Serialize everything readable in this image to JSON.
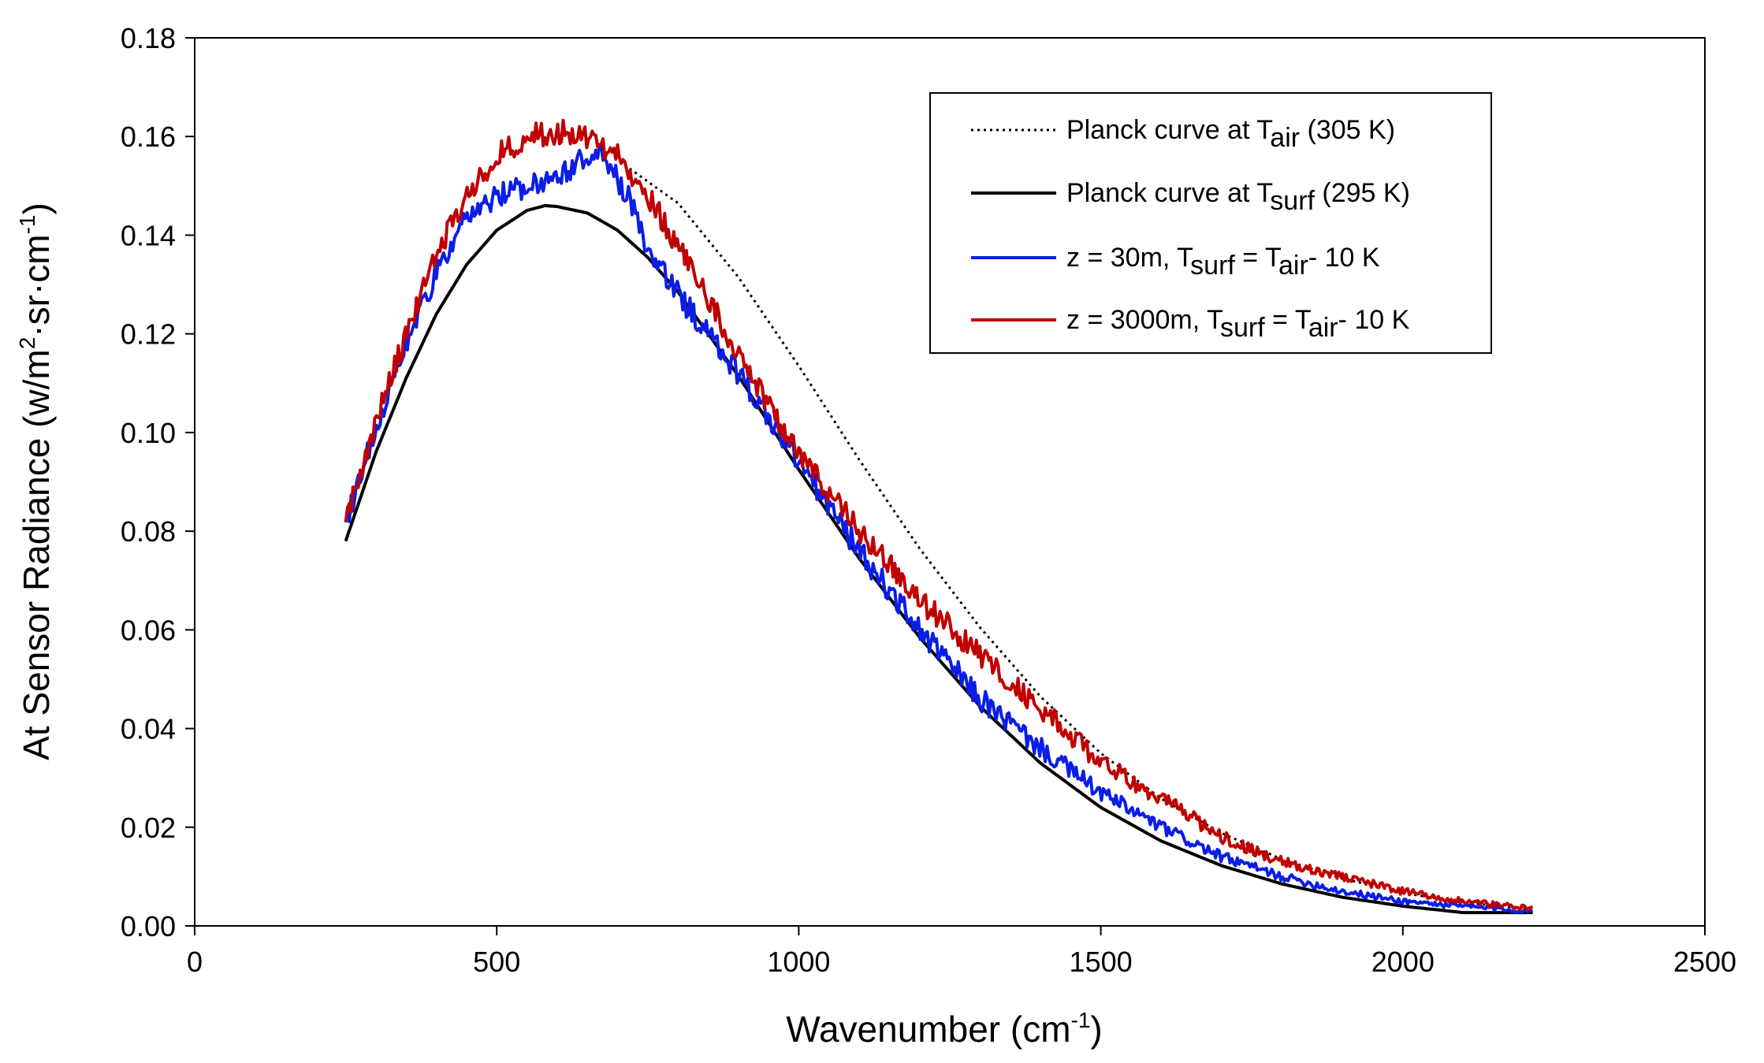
{
  "chart_data": {
    "type": "line",
    "title": "",
    "xlabel": "Wavenumber (cm",
    "xlabel_sup": "-1",
    "xlabel_end": ")",
    "ylabel": "At Sensor Radiance (w/m",
    "ylabel_sup1": "2",
    "ylabel_mid": "·sr·cm",
    "ylabel_sup2": "-1",
    "ylabel_end": ")",
    "xlim": [
      0,
      2500
    ],
    "ylim": [
      0,
      0.18
    ],
    "x_ticks": [
      "0",
      "500",
      "1000",
      "1500",
      "2000",
      "2500"
    ],
    "y_ticks": [
      "0.00",
      "0.02",
      "0.04",
      "0.06",
      "0.08",
      "0.10",
      "0.12",
      "0.14",
      "0.16",
      "0.18"
    ],
    "grid": false,
    "legend_position": "top-right",
    "legend": [
      {
        "pre": "Planck curve at T",
        "sub1": "air",
        "mid": " (305 K)",
        "sub2": "",
        "post": ""
      },
      {
        "pre": "Planck curve at T",
        "sub1": "surf",
        "mid": " (295 K)",
        "sub2": "",
        "post": ""
      },
      {
        "pre": "z = 30m, T",
        "sub1": "surf",
        "mid": " = T",
        "sub2": "air",
        "post": "- 10 K"
      },
      {
        "pre": "z = 3000m, T",
        "sub1": "surf",
        "mid": " = T",
        "sub2": "air",
        "post": "- 10 K"
      }
    ],
    "series": [
      {
        "key": "planck_air",
        "color": "#000000",
        "style": "dotted",
        "x": [
          720,
          800,
          900,
          1000,
          1100,
          1200,
          1300,
          1400,
          1500,
          1600,
          1700,
          1800,
          1900,
          2000,
          2100,
          2215
        ],
        "y": [
          0.1535,
          0.1465,
          0.1315,
          0.1135,
          0.0945,
          0.0765,
          0.0605,
          0.0465,
          0.035,
          0.0258,
          0.0188,
          0.0135,
          0.0096,
          0.0067,
          0.0047,
          0.0035
        ]
      },
      {
        "key": "planck_surf",
        "color": "#000000",
        "style": "solid",
        "x": [
          250,
          300,
          350,
          400,
          450,
          500,
          550,
          580,
          600,
          650,
          700,
          750,
          800,
          900,
          1000,
          1100,
          1200,
          1300,
          1400,
          1500,
          1600,
          1700,
          1800,
          1900,
          2000,
          2100,
          2215
        ],
        "y": [
          0.078,
          0.096,
          0.111,
          0.124,
          0.134,
          0.141,
          0.145,
          0.146,
          0.1458,
          0.1445,
          0.141,
          0.1355,
          0.1285,
          0.1115,
          0.0925,
          0.0745,
          0.0585,
          0.0445,
          0.033,
          0.024,
          0.0172,
          0.0122,
          0.0085,
          0.0058,
          0.004,
          0.0027,
          0.0027
        ]
      },
      {
        "key": "z30",
        "color": "#0a1ee6",
        "style": "solid",
        "noise": 0.0025,
        "x": [
          250,
          300,
          350,
          400,
          450,
          500,
          550,
          600,
          640,
          660,
          680,
          700,
          720,
          740,
          760,
          800,
          900,
          1000,
          1100,
          1200,
          1300,
          1400,
          1500,
          1600,
          1700,
          1800,
          1900,
          2000,
          2100,
          2215
        ],
        "y": [
          0.082,
          0.101,
          0.118,
          0.132,
          0.143,
          0.148,
          0.15,
          0.152,
          0.155,
          0.156,
          0.156,
          0.151,
          0.147,
          0.14,
          0.135,
          0.128,
          0.112,
          0.094,
          0.076,
          0.06,
          0.046,
          0.036,
          0.027,
          0.02,
          0.014,
          0.01,
          0.007,
          0.005,
          0.004,
          0.003
        ]
      },
      {
        "key": "z3000",
        "color": "#c00000",
        "style": "solid",
        "noise": 0.0025,
        "x": [
          250,
          300,
          350,
          400,
          450,
          500,
          550,
          600,
          650,
          700,
          740,
          800,
          900,
          1000,
          1100,
          1200,
          1300,
          1400,
          1500,
          1600,
          1700,
          1800,
          1900,
          2000,
          2100,
          2215
        ],
        "y": [
          0.0825,
          0.102,
          0.12,
          0.136,
          0.148,
          0.156,
          0.16,
          0.161,
          0.16,
          0.156,
          0.15,
          0.138,
          0.116,
          0.096,
          0.08,
          0.066,
          0.055,
          0.044,
          0.033,
          0.026,
          0.018,
          0.013,
          0.01,
          0.007,
          0.005,
          0.0035
        ]
      }
    ]
  }
}
